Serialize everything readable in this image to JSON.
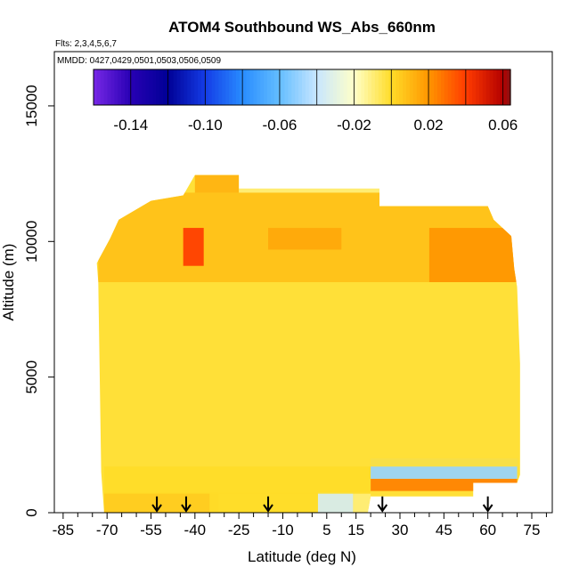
{
  "chart_data": {
    "type": "heatmap",
    "title": "ATOM4 Southbound WS_Abs_660nm",
    "flights_note": "Flts: 2,3,4,5,6,7",
    "dates_note": "MMDD: 0427,0429,0501,0503,0506,0509",
    "xlabel": "Latitude (deg N)",
    "ylabel": "Altitude (m)",
    "xlim": [
      -88,
      82
    ],
    "ylim": [
      0,
      17000
    ],
    "x_ticks": [
      -85,
      -70,
      -55,
      -40,
      -25,
      -10,
      5,
      15,
      30,
      45,
      60,
      75
    ],
    "x_tick_labels": [
      "-85",
      "-70",
      "-55",
      "-40",
      "-25",
      "-10",
      "5",
      "15",
      "30",
      "45",
      "60",
      "75"
    ],
    "y_ticks": [
      0,
      5000,
      10000,
      15000
    ],
    "y_tick_labels": [
      "0",
      "5000",
      "10000",
      "15000"
    ],
    "colorbar": {
      "min": -0.16,
      "max": 0.064,
      "tick_values": [
        -0.14,
        -0.1,
        -0.06,
        -0.02,
        0.02,
        0.06
      ],
      "tick_labels": [
        "-0.14",
        "-0.10",
        "-0.06",
        "-0.02",
        "0.02",
        "0.06"
      ],
      "segment_bounds": [
        -0.16,
        -0.14,
        -0.12,
        -0.1,
        -0.08,
        -0.06,
        -0.04,
        -0.02,
        0.0,
        0.02,
        0.04,
        0.06,
        0.064
      ]
    },
    "regions": [
      {
        "lat": [
          -71,
          -32
        ],
        "alt": [
          0,
          750
        ],
        "value": 0.005
      },
      {
        "lat": [
          -35,
          2
        ],
        "alt": [
          0,
          750
        ],
        "value": 0.0
      },
      {
        "lat": [
          2,
          14
        ],
        "alt": [
          0,
          750
        ],
        "value": -0.035
      },
      {
        "lat": [
          14,
          20
        ],
        "alt": [
          0,
          750
        ],
        "value": -0.01
      },
      {
        "lat": [
          -71,
          20
        ],
        "alt": [
          700,
          1750
        ],
        "value": 0.0
      },
      {
        "lat": [
          20,
          70
        ],
        "alt": [
          800,
          1250
        ],
        "value": 0.025
      },
      {
        "lat": [
          20,
          70
        ],
        "alt": [
          1250,
          2000
        ],
        "value": -0.05
      },
      {
        "lat": [
          -72,
          70
        ],
        "alt": [
          1700,
          8500
        ],
        "value": -0.002
      },
      {
        "lat": [
          -73,
          72
        ],
        "alt": [
          8500,
          11800
        ],
        "value": 0.008
      },
      {
        "lat": [
          -44,
          -37
        ],
        "alt": [
          9100,
          10500
        ],
        "value": 0.04
      },
      {
        "lat": [
          -40,
          -25
        ],
        "alt": [
          11800,
          12450
        ],
        "value": 0.012
      },
      {
        "lat": [
          -25,
          25
        ],
        "alt": [
          11800,
          11950
        ],
        "value": -0.01
      },
      {
        "lat": [
          40,
          70
        ],
        "alt": [
          8500,
          10500
        ],
        "value": 0.02
      },
      {
        "lat": [
          -15,
          10
        ],
        "alt": [
          9700,
          10500
        ],
        "value": 0.015
      }
    ],
    "flight_markers_lat": [
      -53,
      -43,
      -15,
      24,
      60
    ]
  }
}
